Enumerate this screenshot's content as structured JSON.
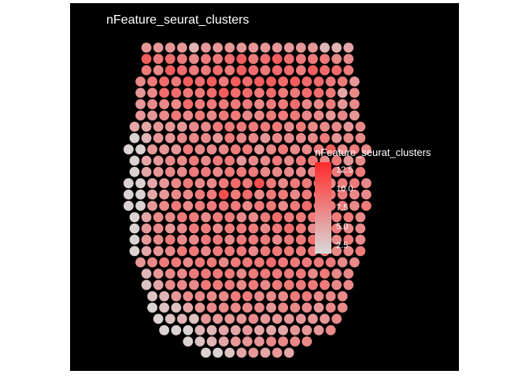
{
  "colors": {
    "background": "#000000",
    "page": "#ffffff",
    "low": "#d9d9d9",
    "high": "#ff2a2a",
    "text": "#ffffff"
  },
  "chart_data": {
    "type": "scatter",
    "title": "nFeature_seurat_clusters",
    "legend": {
      "title": "nFeature_seurat_clusters",
      "position": "right",
      "ticks": [
        12.5,
        10.0,
        7.5,
        5.0,
        2.5
      ],
      "tick_labels": [
        "12.5",
        "10.0",
        "7.5",
        "5.0",
        "2.5"
      ]
    },
    "color_range": [
      1.5,
      13.5
    ],
    "grid": false,
    "rows": [
      {
        "start": 10,
        "values": [
          6,
          6,
          6,
          6,
          4,
          6,
          6,
          6,
          6,
          6,
          6,
          6,
          6,
          6,
          6,
          4,
          4,
          5
        ]
      },
      {
        "start": 10,
        "values": [
          10,
          8,
          9,
          8,
          7,
          8,
          8,
          9,
          10,
          8,
          9,
          10,
          9,
          8,
          8,
          8,
          7,
          7
        ]
      },
      {
        "start": 10,
        "values": [
          8,
          7,
          10,
          9,
          8,
          8,
          9,
          8,
          10,
          9,
          8,
          9,
          9,
          8,
          10,
          9,
          9,
          8
        ]
      },
      {
        "start": 9,
        "values": [
          7,
          8,
          9,
          8,
          10,
          9,
          10,
          8,
          10,
          9,
          10,
          10,
          9,
          10,
          9,
          9,
          8,
          8,
          6
        ]
      },
      {
        "start": 9,
        "values": [
          6,
          7,
          9,
          9,
          8,
          8,
          9,
          10,
          9,
          9,
          8,
          9,
          8,
          8,
          9,
          9,
          8,
          5,
          7
        ]
      },
      {
        "start": 9,
        "values": [
          6,
          7,
          7,
          7,
          9,
          8,
          8,
          8,
          8,
          8,
          7,
          8,
          8,
          9,
          7,
          7,
          8,
          6,
          7
        ]
      },
      {
        "start": 9,
        "values": [
          6,
          6,
          7,
          8,
          7,
          8,
          7,
          8,
          8,
          7,
          7,
          8,
          8,
          8,
          7,
          7,
          6,
          7,
          6
        ]
      },
      {
        "start": 8,
        "values": [
          5,
          5,
          6,
          6,
          6,
          7,
          7,
          8,
          8,
          8,
          8,
          8,
          8,
          7,
          8,
          7,
          7,
          7,
          6,
          7
        ]
      },
      {
        "start": 8,
        "values": [
          2,
          4,
          6,
          6,
          7,
          7,
          7,
          6,
          8,
          7,
          7,
          6,
          7,
          7,
          7,
          7,
          8,
          6,
          7,
          7
        ]
      },
      {
        "start": 7,
        "values": [
          2,
          2,
          6,
          6,
          6,
          8,
          7,
          7,
          7,
          8,
          8,
          6,
          7,
          8,
          7,
          7,
          8,
          10,
          7,
          8,
          7
        ]
      },
      {
        "start": 8,
        "values": [
          2,
          5,
          6,
          7,
          7,
          8,
          7,
          8,
          8,
          6,
          7,
          7,
          8,
          7,
          8,
          8,
          7,
          8,
          6,
          7
        ]
      },
      {
        "start": 8,
        "values": [
          2,
          5,
          6,
          7,
          7,
          8,
          8,
          7,
          8,
          8,
          8,
          7,
          7,
          7,
          7,
          7,
          8,
          8,
          8,
          8
        ]
      },
      {
        "start": 7,
        "values": [
          2,
          2,
          5,
          6,
          7,
          8,
          7,
          7,
          8,
          9,
          8,
          11,
          8,
          7,
          8,
          8,
          7,
          7,
          8,
          8,
          7
        ]
      },
      {
        "start": 7,
        "values": [
          2,
          2,
          5,
          6,
          7,
          7,
          8,
          8,
          11,
          8,
          9,
          7,
          8,
          8,
          7,
          8,
          8,
          8,
          8,
          7,
          7
        ]
      },
      {
        "start": 7,
        "values": [
          2,
          2,
          6,
          7,
          8,
          7,
          8,
          8,
          8,
          8,
          7,
          8,
          8,
          7,
          8,
          9,
          8,
          8,
          8,
          7,
          8
        ]
      },
      {
        "start": 8,
        "values": [
          2,
          5,
          7,
          7,
          8,
          8,
          7,
          8,
          8,
          7,
          7,
          8,
          9,
          8,
          8,
          8,
          8,
          8,
          8,
          7
        ]
      },
      {
        "start": 8,
        "values": [
          2,
          6,
          7,
          6,
          7,
          8,
          8,
          7,
          8,
          8,
          8,
          7,
          8,
          9,
          8,
          7,
          8,
          8,
          7,
          7
        ]
      },
      {
        "start": 8,
        "values": [
          2,
          6,
          7,
          8,
          7,
          7,
          8,
          8,
          7,
          8,
          8,
          8,
          7,
          8,
          8,
          9,
          8,
          7,
          8,
          7
        ]
      },
      {
        "start": 8,
        "values": [
          2,
          5,
          6,
          7,
          8,
          8,
          7,
          8,
          8,
          8,
          7,
          8,
          8,
          8,
          8,
          8,
          8,
          7,
          7,
          8
        ]
      },
      {
        "start": 9,
        "values": [
          6,
          7,
          8,
          8,
          7,
          8,
          8,
          7,
          8,
          8,
          8,
          9,
          8,
          8,
          8,
          8,
          8,
          7,
          7
        ]
      },
      {
        "start": 10,
        "values": [
          4,
          6,
          7,
          7,
          8,
          8,
          8,
          8,
          7,
          8,
          8,
          8,
          8,
          8,
          7,
          8,
          7,
          7
        ]
      },
      {
        "start": 10,
        "values": [
          3,
          5,
          7,
          7,
          7,
          8,
          8,
          8,
          7,
          8,
          7,
          8,
          8,
          8,
          8,
          8,
          7,
          7
        ]
      },
      {
        "start": 11,
        "values": [
          3,
          4,
          6,
          7,
          7,
          7,
          7,
          8,
          8,
          7,
          7,
          7,
          8,
          8,
          7,
          7,
          7
        ]
      },
      {
        "start": 11,
        "values": [
          2,
          3,
          3,
          5,
          6,
          7,
          7,
          7,
          7,
          7,
          6,
          7,
          7,
          7,
          6,
          7,
          7
        ]
      },
      {
        "start": 12,
        "values": [
          2,
          3,
          4,
          3,
          6,
          6,
          6,
          6,
          7,
          6,
          6,
          6,
          6,
          6,
          6,
          7
        ]
      },
      {
        "start": 13,
        "values": [
          2,
          2,
          2,
          4,
          4,
          5,
          5,
          6,
          5,
          5,
          5,
          6,
          6,
          6,
          7
        ]
      },
      {
        "start": 17,
        "values": [
          2,
          3,
          4,
          5,
          6,
          6,
          6,
          7,
          7,
          7,
          7
        ]
      },
      {
        "start": 20,
        "values": [
          2,
          2,
          3,
          5,
          6,
          5,
          6,
          5
        ]
      }
    ]
  }
}
